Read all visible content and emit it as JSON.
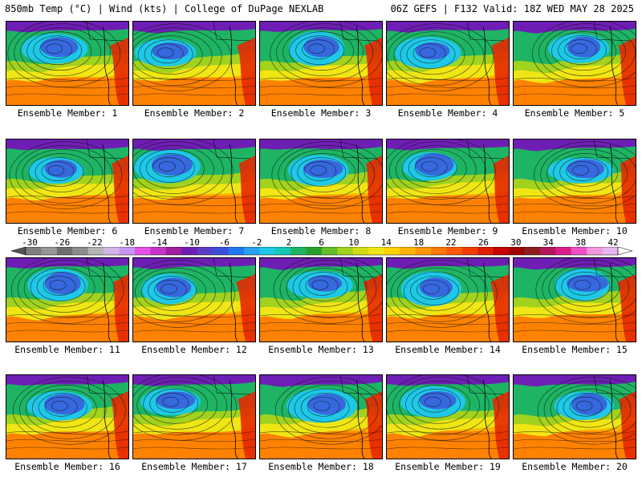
{
  "header": {
    "title": "850mb Temp (°C) | Wind (kts) | College of DuPage NEXLAB",
    "run_info": "06Z GEFS | F132 Valid: 18Z WED MAY 28 2025"
  },
  "panels": [
    {
      "label": "Ensemble Member: 1"
    },
    {
      "label": "Ensemble Member: 2"
    },
    {
      "label": "Ensemble Member: 3"
    },
    {
      "label": "Ensemble Member: 4"
    },
    {
      "label": "Ensemble Member: 5"
    },
    {
      "label": "Ensemble Member: 6"
    },
    {
      "label": "Ensemble Member: 7"
    },
    {
      "label": "Ensemble Member: 8"
    },
    {
      "label": "Ensemble Member: 9"
    },
    {
      "label": "Ensemble Member: 10"
    },
    {
      "label": "Ensemble Member: 11"
    },
    {
      "label": "Ensemble Member: 12"
    },
    {
      "label": "Ensemble Member: 13"
    },
    {
      "label": "Ensemble Member: 14"
    },
    {
      "label": "Ensemble Member: 15"
    },
    {
      "label": "Ensemble Member: 16"
    },
    {
      "label": "Ensemble Member: 17"
    },
    {
      "label": "Ensemble Member: 18"
    },
    {
      "label": "Ensemble Member: 19"
    },
    {
      "label": "Ensemble Member: 20"
    }
  ],
  "colorbar": {
    "ticks": [
      "-30",
      "-26",
      "-22",
      "-18",
      "-14",
      "-10",
      "-6",
      "-2",
      "2",
      "6",
      "10",
      "14",
      "18",
      "22",
      "26",
      "30",
      "34",
      "38",
      "42"
    ],
    "colors": [
      "#7f7f7f",
      "#969696",
      "#6e6e6e",
      "#8c8c8c",
      "#b4b4b4",
      "#d2b4e6",
      "#c896f0",
      "#e650e6",
      "#c832c8",
      "#a01ea0",
      "#6e1eb4",
      "#5a3cc8",
      "#3c50dc",
      "#1e78f0",
      "#28a0f0",
      "#1ec8e6",
      "#14c8b4",
      "#1eb464",
      "#28a028",
      "#64be28",
      "#a0d21e",
      "#d2dc14",
      "#f0e614",
      "#ffd200",
      "#ffb400",
      "#ff9600",
      "#ff7800",
      "#ff5a00",
      "#f03c00",
      "#dc1e00",
      "#c80000",
      "#a00000",
      "#8c1e1e",
      "#b4145a",
      "#dc1e8c",
      "#f050c8",
      "#f096dc",
      "#e6b4f0"
    ]
  },
  "map_colors": {
    "polar": "#6e1eb4",
    "cold": "#3c50dc",
    "cool": "#1ec8e6",
    "mid": "#1eb464",
    "mild": "#a0d21e",
    "warm": "#f0e614",
    "hot": "#ffb400",
    "veryhot": "#ff7800",
    "extreme": "#e62800"
  }
}
